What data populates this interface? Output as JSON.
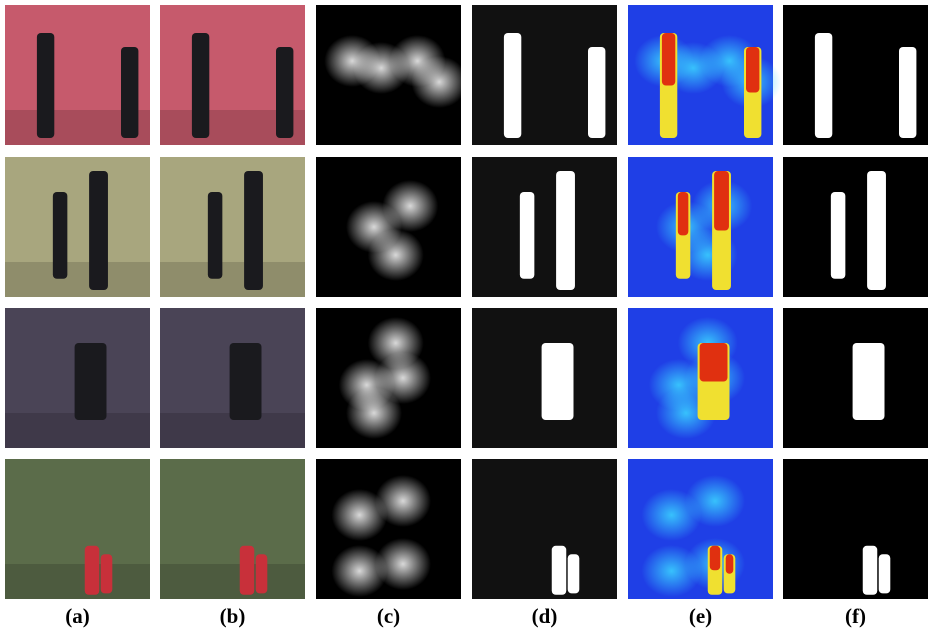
{
  "labels": [
    "(a)",
    "(b)",
    "(c)",
    "(d)",
    "(e)",
    "(f)"
  ]
}
